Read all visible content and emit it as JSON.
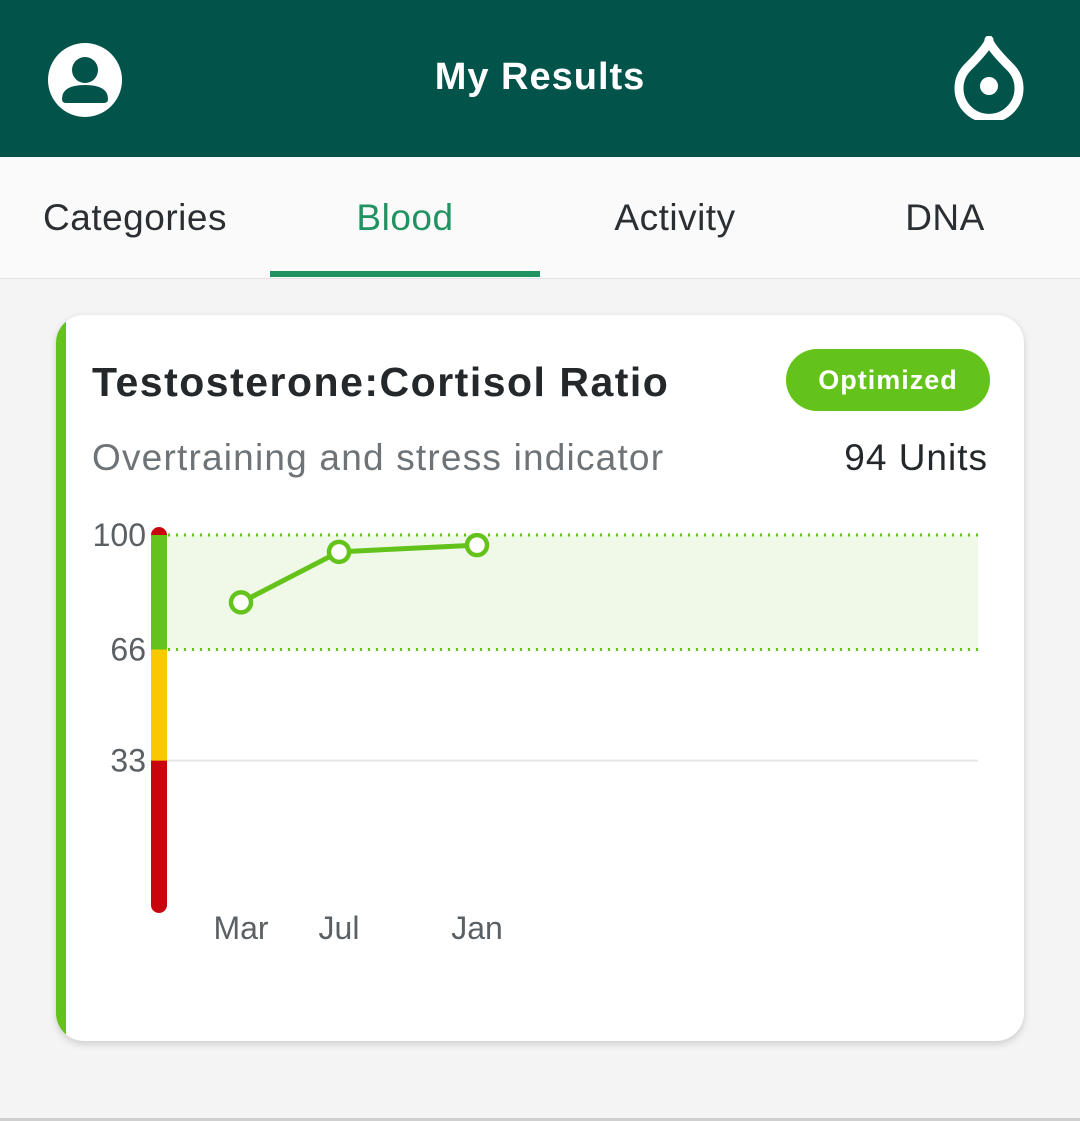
{
  "header": {
    "title": "My Results",
    "left_icon": "profile-icon",
    "right_icon": "drop-icon",
    "background": "#02544b"
  },
  "tabs": [
    {
      "label": "Categories",
      "active": false
    },
    {
      "label": "Blood",
      "active": true
    },
    {
      "label": "Activity",
      "active": false
    },
    {
      "label": "DNA",
      "active": false
    }
  ],
  "accent_color": "#219262",
  "card": {
    "title": "Testosterone:Cortisol Ratio",
    "badge": "Optimized",
    "badge_color": "#64c31a",
    "subtitle": "Overtraining and stress indicator",
    "value": "94 Units"
  },
  "chart_data": {
    "type": "line",
    "categories": [
      "Mar",
      "Jul",
      "Jan"
    ],
    "values": [
      80,
      95,
      97
    ],
    "y_ticks": [
      "100",
      "66",
      "33"
    ],
    "optimal_range": [
      66,
      100
    ],
    "range_colors": {
      "low": "#c8040c",
      "mid": "#f8c800",
      "optimal": "#64c31a",
      "high": "#c8040c"
    },
    "line_color": "#64c31a"
  }
}
